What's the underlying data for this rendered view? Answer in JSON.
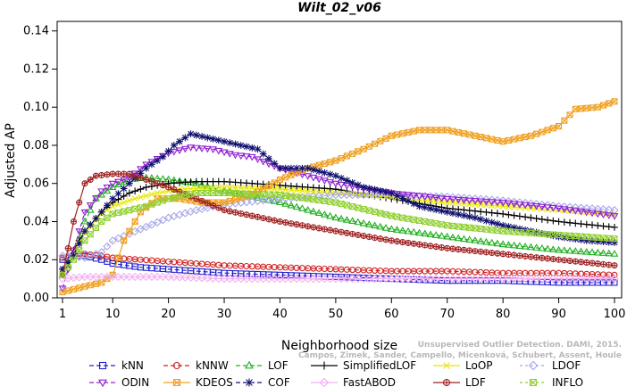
{
  "chart_data": {
    "type": "line",
    "title": "Wilt_02_v06",
    "xlabel": "Neighborhood size",
    "ylabel": "Adjusted AP",
    "xlim": [
      1,
      100
    ],
    "ylim": [
      0,
      0.145
    ],
    "x_ticks": [
      1,
      10,
      20,
      30,
      40,
      50,
      60,
      70,
      80,
      90,
      100
    ],
    "y_ticks": [
      0.0,
      0.02,
      0.04,
      0.06,
      0.08,
      0.1,
      0.12,
      0.14
    ],
    "y_tick_labels": [
      "0.00",
      "0.02",
      "0.04",
      "0.06",
      "0.08",
      "0.10",
      "0.12",
      "0.14"
    ],
    "grid": false,
    "legend_position": "bottom",
    "series": [
      {
        "name": "kNN",
        "color": "#2020d0",
        "marker": "square",
        "dash": "5,3",
        "points": [
          [
            1,
            0.02
          ],
          [
            3,
            0.022
          ],
          [
            5,
            0.022
          ],
          [
            8,
            0.02
          ],
          [
            10,
            0.018
          ],
          [
            15,
            0.016
          ],
          [
            20,
            0.015
          ],
          [
            30,
            0.013
          ],
          [
            40,
            0.012
          ],
          [
            50,
            0.011
          ],
          [
            60,
            0.01
          ],
          [
            70,
            0.009
          ],
          [
            80,
            0.009
          ],
          [
            90,
            0.008
          ],
          [
            100,
            0.008
          ]
        ]
      },
      {
        "name": "kNNW",
        "color": "#d02020",
        "marker": "circle",
        "dash": "5,3",
        "points": [
          [
            1,
            0.021
          ],
          [
            3,
            0.023
          ],
          [
            5,
            0.023
          ],
          [
            8,
            0.022
          ],
          [
            10,
            0.021
          ],
          [
            15,
            0.02
          ],
          [
            20,
            0.019
          ],
          [
            30,
            0.017
          ],
          [
            40,
            0.016
          ],
          [
            50,
            0.015
          ],
          [
            60,
            0.014
          ],
          [
            70,
            0.014
          ],
          [
            80,
            0.013
          ],
          [
            90,
            0.013
          ],
          [
            100,
            0.012
          ]
        ]
      },
      {
        "name": "LOF",
        "color": "#20b020",
        "marker": "triangle-up",
        "dash": "5,3",
        "points": [
          [
            1,
            0.012
          ],
          [
            3,
            0.022
          ],
          [
            5,
            0.04
          ],
          [
            7,
            0.052
          ],
          [
            10,
            0.058
          ],
          [
            13,
            0.062
          ],
          [
            16,
            0.063
          ],
          [
            20,
            0.062
          ],
          [
            25,
            0.06
          ],
          [
            30,
            0.056
          ],
          [
            40,
            0.05
          ],
          [
            50,
            0.042
          ],
          [
            60,
            0.036
          ],
          [
            70,
            0.032
          ],
          [
            80,
            0.028
          ],
          [
            90,
            0.025
          ],
          [
            100,
            0.023
          ]
        ]
      },
      {
        "name": "SimplifiedLOF",
        "color": "#000000",
        "marker": "plus",
        "dash": "",
        "points": [
          [
            1,
            0.015
          ],
          [
            3,
            0.025
          ],
          [
            5,
            0.035
          ],
          [
            8,
            0.045
          ],
          [
            10,
            0.05
          ],
          [
            13,
            0.055
          ],
          [
            16,
            0.058
          ],
          [
            20,
            0.06
          ],
          [
            25,
            0.061
          ],
          [
            30,
            0.061
          ],
          [
            35,
            0.06
          ],
          [
            40,
            0.059
          ],
          [
            50,
            0.057
          ],
          [
            60,
            0.052
          ],
          [
            70,
            0.047
          ],
          [
            80,
            0.044
          ],
          [
            90,
            0.04
          ],
          [
            100,
            0.037
          ]
        ]
      },
      {
        "name": "LoOP",
        "color": "#e8e800",
        "marker": "x",
        "dash": "",
        "points": [
          [
            1,
            0.014
          ],
          [
            3,
            0.024
          ],
          [
            5,
            0.034
          ],
          [
            8,
            0.044
          ],
          [
            10,
            0.048
          ],
          [
            14,
            0.052
          ],
          [
            18,
            0.055
          ],
          [
            22,
            0.057
          ],
          [
            30,
            0.058
          ],
          [
            40,
            0.057
          ],
          [
            50,
            0.055
          ],
          [
            60,
            0.053
          ],
          [
            70,
            0.05
          ],
          [
            80,
            0.048
          ],
          [
            90,
            0.046
          ],
          [
            100,
            0.044
          ]
        ]
      },
      {
        "name": "LDOF",
        "color": "#a8a8e8",
        "marker": "diamond",
        "dash": "3,3",
        "points": [
          [
            1,
            0.022
          ],
          [
            3,
            0.022
          ],
          [
            5,
            0.021
          ],
          [
            8,
            0.024
          ],
          [
            10,
            0.03
          ],
          [
            15,
            0.036
          ],
          [
            20,
            0.042
          ],
          [
            25,
            0.046
          ],
          [
            30,
            0.049
          ],
          [
            40,
            0.052
          ],
          [
            50,
            0.054
          ],
          [
            60,
            0.054
          ],
          [
            70,
            0.053
          ],
          [
            80,
            0.051
          ],
          [
            90,
            0.048
          ],
          [
            100,
            0.046
          ]
        ]
      },
      {
        "name": "ODIN",
        "color": "#9020d0",
        "marker": "triangle-down",
        "dash": "5,3",
        "points": [
          [
            1,
            0.005
          ],
          [
            3,
            0.025
          ],
          [
            5,
            0.045
          ],
          [
            8,
            0.056
          ],
          [
            10,
            0.06
          ],
          [
            13,
            0.063
          ],
          [
            16,
            0.07
          ],
          [
            20,
            0.076
          ],
          [
            24,
            0.079
          ],
          [
            28,
            0.078
          ],
          [
            32,
            0.075
          ],
          [
            35,
            0.074
          ],
          [
            40,
            0.068
          ],
          [
            45,
            0.064
          ],
          [
            50,
            0.06
          ],
          [
            60,
            0.055
          ],
          [
            70,
            0.052
          ],
          [
            80,
            0.05
          ],
          [
            90,
            0.047
          ],
          [
            100,
            0.043
          ]
        ]
      },
      {
        "name": "KDEOS",
        "color": "#f0a020",
        "marker": "square-x",
        "dash": "",
        "points": [
          [
            1,
            0.003
          ],
          [
            5,
            0.006
          ],
          [
            8,
            0.008
          ],
          [
            10,
            0.012
          ],
          [
            12,
            0.03
          ],
          [
            15,
            0.045
          ],
          [
            18,
            0.052
          ],
          [
            22,
            0.052
          ],
          [
            26,
            0.05
          ],
          [
            30,
            0.05
          ],
          [
            35,
            0.054
          ],
          [
            40,
            0.062
          ],
          [
            45,
            0.068
          ],
          [
            50,
            0.072
          ],
          [
            55,
            0.078
          ],
          [
            60,
            0.085
          ],
          [
            65,
            0.088
          ],
          [
            70,
            0.088
          ],
          [
            75,
            0.085
          ],
          [
            80,
            0.082
          ],
          [
            85,
            0.085
          ],
          [
            90,
            0.09
          ],
          [
            93,
            0.099
          ],
          [
            97,
            0.1
          ],
          [
            100,
            0.103
          ]
        ]
      },
      {
        "name": "COF",
        "color": "#101070",
        "marker": "star",
        "dash": "5,3",
        "points": [
          [
            1,
            0.015
          ],
          [
            3,
            0.022
          ],
          [
            5,
            0.035
          ],
          [
            8,
            0.045
          ],
          [
            10,
            0.052
          ],
          [
            13,
            0.06
          ],
          [
            16,
            0.068
          ],
          [
            19,
            0.074
          ],
          [
            21,
            0.08
          ],
          [
            24,
            0.086
          ],
          [
            27,
            0.084
          ],
          [
            30,
            0.082
          ],
          [
            33,
            0.08
          ],
          [
            36,
            0.078
          ],
          [
            40,
            0.068
          ],
          [
            45,
            0.068
          ],
          [
            50,
            0.064
          ],
          [
            55,
            0.058
          ],
          [
            60,
            0.055
          ],
          [
            65,
            0.048
          ],
          [
            70,
            0.045
          ],
          [
            75,
            0.042
          ],
          [
            80,
            0.038
          ],
          [
            85,
            0.035
          ],
          [
            90,
            0.032
          ],
          [
            95,
            0.03
          ],
          [
            100,
            0.029
          ]
        ]
      },
      {
        "name": "FastABOD",
        "color": "#f0b0f0",
        "marker": "diamond",
        "dash": "",
        "points": [
          [
            1,
            0.01
          ],
          [
            5,
            0.011
          ],
          [
            10,
            0.011
          ],
          [
            20,
            0.011
          ],
          [
            30,
            0.01
          ],
          [
            40,
            0.01
          ],
          [
            50,
            0.01
          ],
          [
            60,
            0.01
          ],
          [
            70,
            0.01
          ],
          [
            80,
            0.01
          ],
          [
            90,
            0.01
          ],
          [
            100,
            0.01
          ]
        ]
      },
      {
        "name": "LDF",
        "color": "#a02020",
        "marker": "circle-plus",
        "dash": "",
        "points": [
          [
            1,
            0.012
          ],
          [
            3,
            0.04
          ],
          [
            5,
            0.06
          ],
          [
            7,
            0.064
          ],
          [
            10,
            0.065
          ],
          [
            13,
            0.065
          ],
          [
            16,
            0.062
          ],
          [
            20,
            0.058
          ],
          [
            25,
            0.052
          ],
          [
            30,
            0.046
          ],
          [
            40,
            0.04
          ],
          [
            50,
            0.035
          ],
          [
            60,
            0.03
          ],
          [
            70,
            0.026
          ],
          [
            80,
            0.023
          ],
          [
            90,
            0.02
          ],
          [
            100,
            0.017
          ]
        ]
      },
      {
        "name": "INFLO",
        "color": "#90d030",
        "marker": "square-x",
        "dash": "3,3",
        "points": [
          [
            1,
            0.012
          ],
          [
            3,
            0.02
          ],
          [
            5,
            0.03
          ],
          [
            8,
            0.04
          ],
          [
            10,
            0.044
          ],
          [
            13,
            0.046
          ],
          [
            16,
            0.048
          ],
          [
            20,
            0.052
          ],
          [
            25,
            0.055
          ],
          [
            30,
            0.055
          ],
          [
            40,
            0.054
          ],
          [
            50,
            0.05
          ],
          [
            60,
            0.043
          ],
          [
            70,
            0.038
          ],
          [
            80,
            0.035
          ],
          [
            90,
            0.033
          ],
          [
            100,
            0.031
          ]
        ]
      }
    ]
  },
  "watermark": {
    "line1": "Unsupervised Outlier Detection. DAMI, 2015.",
    "line2": "Campos, Zimek, Sander, Campello, Micenková, Schubert, Assent, Houle"
  }
}
